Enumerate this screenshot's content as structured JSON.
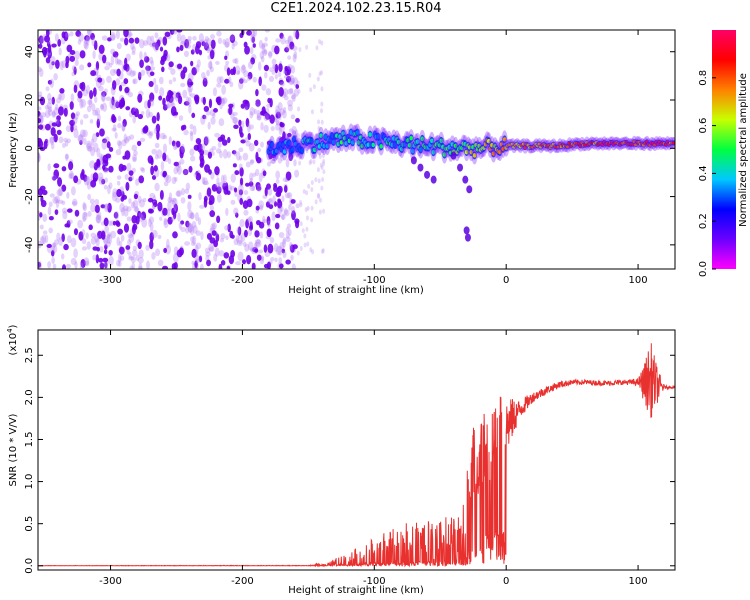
{
  "title": "C2E1.2024.102.23.15.R04",
  "colors": {
    "line": "#e8302e",
    "spectrogram_primary": "#6e00e8",
    "axis": "#000000"
  },
  "chart_data": [
    {
      "type": "heatmap",
      "xlabel": "Height of straight line (km)",
      "ylabel": "Frequency (Hz)",
      "xlim": [
        -355,
        128
      ],
      "ylim": [
        -50,
        49
      ],
      "x_ticks": [
        -300,
        -200,
        -100,
        0,
        100
      ],
      "y_ticks": [
        -40,
        -20,
        0,
        20,
        40
      ],
      "grid": false,
      "colorbar": {
        "label": "Normalized spectral amplitude",
        "range": [
          0,
          1
        ],
        "ticks": [
          0.0,
          0.2,
          0.4,
          0.6,
          0.8
        ],
        "colormap": [
          "#ff00ff",
          "#6a00ff",
          "#0000ff",
          "#00c8ff",
          "#00ff40",
          "#c8ff00",
          "#ff8000",
          "#ff0000",
          "#ff0066"
        ]
      },
      "noise_region": {
        "x_range": [
          -355,
          -158
        ],
        "freq_range": [
          -50,
          49
        ],
        "level": 0.1
      },
      "ridge": {
        "x": [
          -180,
          -150,
          -120,
          -100,
          -80,
          -60,
          -40,
          -20,
          0,
          20,
          40,
          60,
          80,
          100,
          128
        ],
        "freq": [
          0,
          2,
          4,
          3,
          2,
          1,
          0,
          0,
          1,
          1,
          1,
          2,
          2,
          2,
          2
        ],
        "level": [
          0.25,
          0.35,
          0.4,
          0.38,
          0.4,
          0.45,
          0.5,
          0.6,
          0.7,
          0.75,
          0.8,
          0.8,
          0.85,
          0.85,
          0.85
        ]
      },
      "tails": [
        {
          "x": [
            -70,
            -65,
            -60,
            -55
          ],
          "freq": [
            -5,
            -8,
            -11,
            -13
          ]
        },
        {
          "x": [
            -40,
            -35,
            -31,
            -28
          ],
          "freq": [
            -3,
            -8,
            -13,
            -17
          ]
        },
        {
          "x": [
            -30,
            -29
          ],
          "freq": [
            -34,
            -37
          ]
        }
      ]
    },
    {
      "type": "line",
      "xlabel": "Height of straight line (km)",
      "ylabel": "SNR (10 * V/V)",
      "multiplier_label": "(x10",
      "multiplier_exp": "4",
      "xlim": [
        -355,
        128
      ],
      "ylim": [
        -0.05,
        2.8
      ],
      "x_ticks": [
        -300,
        -200,
        -100,
        0,
        100
      ],
      "y_ticks": [
        0.0,
        0.5,
        1.0,
        1.5,
        2.0,
        2.5
      ],
      "grid": false,
      "series": [
        {
          "x": [
            -355,
            -150,
            -135,
            -130,
            -120,
            -110,
            -100,
            -90,
            -80,
            -70,
            -60,
            -50,
            -40,
            -35,
            -30,
            -27,
            -25,
            -22,
            -20,
            -15,
            -10,
            -5,
            0,
            10,
            20,
            30,
            40,
            50,
            60,
            70,
            80,
            90,
            100,
            105,
            108,
            110,
            115,
            120,
            128
          ],
          "mean": [
            0.0,
            0.0,
            0.01,
            0.04,
            0.06,
            0.09,
            0.12,
            0.16,
            0.2,
            0.22,
            0.24,
            0.26,
            0.3,
            0.34,
            0.55,
            1.0,
            1.25,
            1.3,
            1.4,
            1.45,
            1.55,
            1.6,
            1.65,
            1.85,
            2.0,
            2.08,
            2.15,
            2.18,
            2.18,
            2.17,
            2.17,
            2.18,
            2.18,
            2.17,
            2.2,
            2.2,
            2.14,
            2.12,
            2.12
          ],
          "noise": [
            0.003,
            0.005,
            0.03,
            0.05,
            0.1,
            0.15,
            0.22,
            0.25,
            0.3,
            0.3,
            0.3,
            0.3,
            0.32,
            0.35,
            0.6,
            0.6,
            0.6,
            0.55,
            0.55,
            0.55,
            0.5,
            0.45,
            0.35,
            0.12,
            0.06,
            0.05,
            0.04,
            0.03,
            0.03,
            0.03,
            0.03,
            0.03,
            0.04,
            0.25,
            0.4,
            0.45,
            0.2,
            0.02,
            0.01
          ]
        }
      ]
    }
  ]
}
